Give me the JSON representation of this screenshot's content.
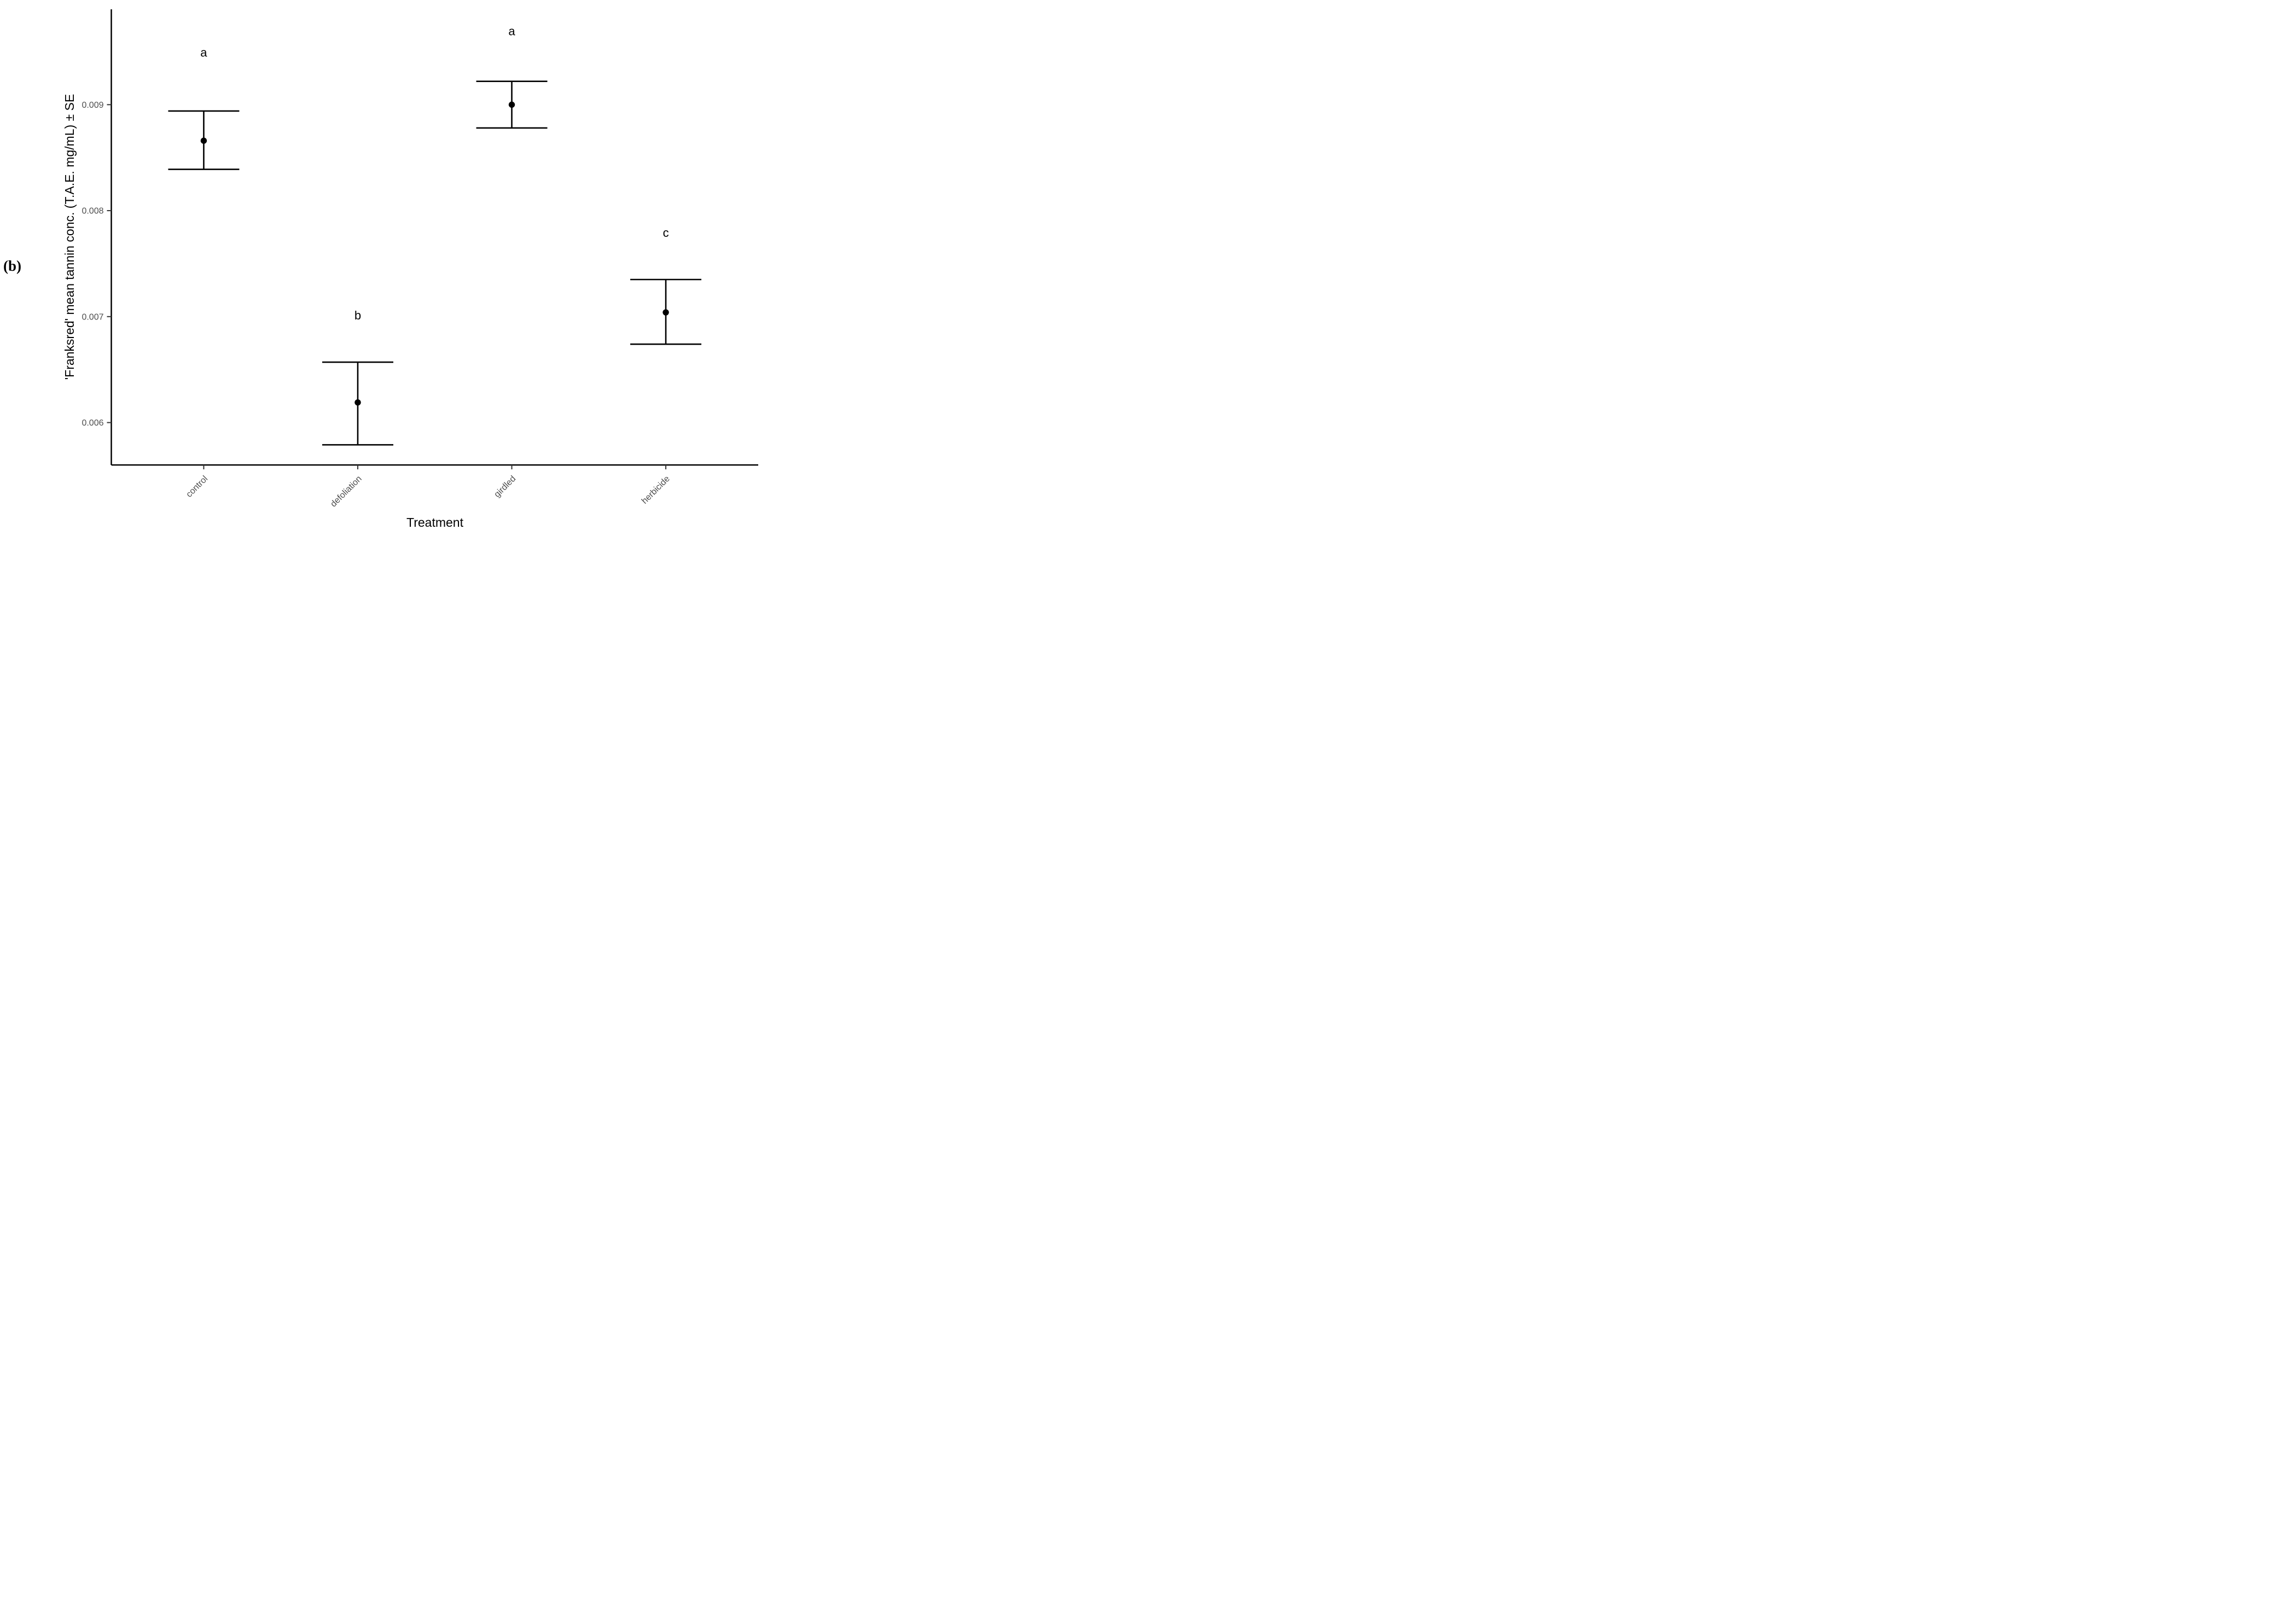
{
  "panel_label": "(b)",
  "chart_data": {
    "type": "scatter",
    "subtype": "point-with-errorbar",
    "title": "",
    "xlabel": "Treatment",
    "ylabel": "'Franksred' mean tannin conc. (T.A.E. mg/mL) ± SE",
    "categories": [
      "control",
      "defoliation",
      "girdled",
      "herbicide"
    ],
    "series": [
      {
        "name": "'Franksred' mean tannin conc.",
        "means": [
          0.00866,
          0.00619,
          0.009,
          0.00704
        ],
        "upper": [
          0.00894,
          0.00657,
          0.00922,
          0.00735
        ],
        "lower": [
          0.00839,
          0.00579,
          0.00878,
          0.00674
        ]
      }
    ],
    "significance_letters": [
      {
        "category": "control",
        "letter": "a",
        "y": 0.00949
      },
      {
        "category": "defoliation",
        "letter": "b",
        "y": 0.00701
      },
      {
        "category": "girdled",
        "letter": "a",
        "y": 0.00969
      },
      {
        "category": "herbicide",
        "letter": "c",
        "y": 0.00779
      }
    ],
    "y_ticks": [
      0.006,
      0.007,
      0.008,
      0.009
    ],
    "y_tick_labels": [
      "0.006",
      "0.007",
      "0.008",
      "0.009"
    ],
    "ylim": [
      0.0056,
      0.0099
    ],
    "grid": false,
    "legend": "none",
    "colors": {
      "points": "#000000",
      "error_bars": "#000000",
      "axis_lines": "#000000",
      "tick_marks": "#333333",
      "tick_labels": "#4d4d4d",
      "letters": "#000000"
    }
  }
}
